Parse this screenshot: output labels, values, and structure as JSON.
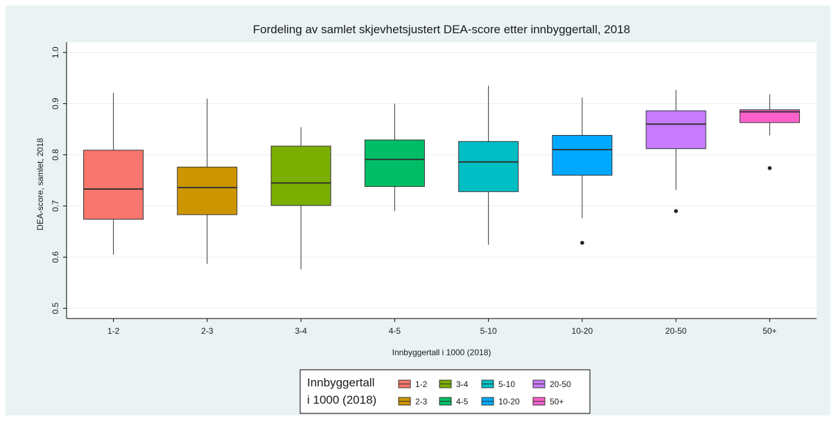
{
  "chart_data": {
    "type": "box",
    "title": "Fordeling av samlet skjevhetsjustert DEA-score etter innbyggertall, 2018",
    "xlabel": "Innbyggertall i 1000 (2018)",
    "ylabel": "DEA-score, samlet, 2018",
    "ylim": [
      0.5,
      1.0
    ],
    "yticks": [
      "0.5",
      "0.6",
      "0.7",
      "0.8",
      "0.9",
      "1.0"
    ],
    "grid": true,
    "legend": {
      "title_lines": [
        "Innbyggertall",
        "i 1000 (2018)"
      ],
      "placement": "bottom"
    },
    "categories": [
      "1-2",
      "2-3",
      "3-4",
      "4-5",
      "5-10",
      "10-20",
      "20-50",
      "50+"
    ],
    "colors": [
      "#f8766d",
      "#cd9600",
      "#7cae00",
      "#00be67",
      "#00bfc4",
      "#00a9ff",
      "#c77cff",
      "#ff61cc"
    ],
    "boxes": [
      {
        "category": "1-2",
        "whisker_low": 0.605,
        "q1": 0.674,
        "median": 0.733,
        "q3": 0.809,
        "whisker_high": 0.921,
        "outliers": []
      },
      {
        "category": "2-3",
        "whisker_low": 0.587,
        "q1": 0.683,
        "median": 0.736,
        "q3": 0.776,
        "whisker_high": 0.91,
        "outliers": []
      },
      {
        "category": "3-4",
        "whisker_low": 0.576,
        "q1": 0.701,
        "median": 0.745,
        "q3": 0.817,
        "whisker_high": 0.854,
        "outliers": []
      },
      {
        "category": "4-5",
        "whisker_low": 0.69,
        "q1": 0.738,
        "median": 0.791,
        "q3": 0.829,
        "whisker_high": 0.9,
        "outliers": []
      },
      {
        "category": "5-10",
        "whisker_low": 0.624,
        "q1": 0.728,
        "median": 0.786,
        "q3": 0.826,
        "whisker_high": 0.935,
        "outliers": []
      },
      {
        "category": "10-20",
        "whisker_low": 0.676,
        "q1": 0.76,
        "median": 0.81,
        "q3": 0.838,
        "whisker_high": 0.912,
        "outliers": [
          0.628
        ]
      },
      {
        "category": "20-50",
        "whisker_low": 0.731,
        "q1": 0.812,
        "median": 0.86,
        "q3": 0.886,
        "whisker_high": 0.927,
        "outliers": [
          0.69
        ]
      },
      {
        "category": "50+",
        "whisker_low": 0.838,
        "q1": 0.863,
        "median": 0.884,
        "q3": 0.888,
        "whisker_high": 0.918,
        "outliers": [
          0.774
        ]
      }
    ]
  }
}
